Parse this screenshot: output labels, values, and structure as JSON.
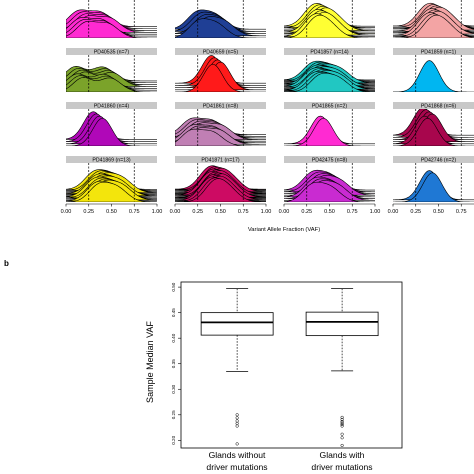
{
  "chart_data": [
    {
      "type": "area",
      "subtype": "ridgeline density grid",
      "xlabel": "Variant Allele Fraction (VAF)",
      "xlim": [
        0,
        1
      ],
      "x_ticks": [
        "0.00",
        "0.25",
        "0.50",
        "0.75",
        "1.00"
      ],
      "reference_lines": [
        0.25,
        0.75
      ],
      "panels": [
        {
          "label": "",
          "color": "#ff2ad2",
          "n_ridges": 7,
          "peaks": [
            0.18,
            0.42
          ]
        },
        {
          "label": "",
          "color": "#1f3f95",
          "n_ridges": 5,
          "peaks": [
            0.28,
            0.48
          ]
        },
        {
          "label": "",
          "color": "#ffff33",
          "n_ridges": 9,
          "peaks": [
            0.35,
            0.5
          ]
        },
        {
          "label": "",
          "color": "#f3a4a4",
          "n_ridges": 10,
          "peaks": [
            0.4,
            0.55
          ]
        },
        {
          "label": "PD40535 (n=7)",
          "color": "#7ba32a",
          "n_ridges": 7,
          "peaks": [
            0.15,
            0.45
          ]
        },
        {
          "label": "PD40659 (n=5)",
          "color": "#ff1a1a",
          "n_ridges": 5,
          "peaks": [
            0.45
          ]
        },
        {
          "label": "PD41857 (n=14)",
          "color": "#21c7c2",
          "n_ridges": 14,
          "peaks": [
            0.35,
            0.55
          ]
        },
        {
          "label": "PD41859 (n=1)",
          "color": "#00b6f1",
          "n_ridges": 1,
          "peaks": [
            0.45
          ]
        },
        {
          "label": "PD41860 (n=4)",
          "color": "#b008b8",
          "n_ridges": 4,
          "peaks": [
            0.35
          ]
        },
        {
          "label": "PD41861 (n=8)",
          "color": "#c07fb4",
          "n_ridges": 8,
          "peaks": [
            0.22,
            0.45
          ]
        },
        {
          "label": "PD41865 (n=2)",
          "color": "#ff2ad2",
          "n_ridges": 2,
          "peaks": [
            0.45
          ]
        },
        {
          "label": "PD41868 (n=6)",
          "color": "#a8064d",
          "n_ridges": 6,
          "peaks": [
            0.38
          ]
        },
        {
          "label": "PD41869 (n=13)",
          "color": "#f3e50c",
          "n_ridges": 13,
          "peaks": [
            0.35,
            0.55
          ]
        },
        {
          "label": "PD41871 (n=17)",
          "color": "#cd0b63",
          "n_ridges": 17,
          "peaks": [
            0.4,
            0.55
          ]
        },
        {
          "label": "PD42475 (n=8)",
          "color": "#c92bd1",
          "n_ridges": 8,
          "peaks": [
            0.35,
            0.55
          ]
        },
        {
          "label": "PD42746 (n=2)",
          "color": "#1f78d4",
          "n_ridges": 2,
          "peaks": [
            0.45
          ]
        }
      ]
    },
    {
      "type": "box",
      "panel_label": "b",
      "ylabel": "Sample Median VAF",
      "y_ticks": [
        "0.20",
        "0.25",
        "0.30",
        "0.35",
        "0.40",
        "0.45",
        "0.50"
      ],
      "ylim": [
        0.185,
        0.51
      ],
      "categories": [
        "Glands without driver mutations",
        "Glands with driver mutations"
      ],
      "boxes": [
        {
          "whisker_low": 0.335,
          "q1": 0.406,
          "median": 0.431,
          "q3": 0.45,
          "whisker_high": 0.497,
          "outliers": [
            0.228,
            0.233,
            0.238,
            0.244,
            0.25,
            0.193
          ]
        },
        {
          "whisker_low": 0.336,
          "q1": 0.405,
          "median": 0.432,
          "q3": 0.451,
          "whisker_high": 0.497,
          "outliers": [
            0.228,
            0.231,
            0.234,
            0.237,
            0.241,
            0.245,
            0.212,
            0.205,
            0.19
          ]
        }
      ]
    }
  ],
  "labels": {
    "first_category": [
      "Glands without",
      "driver mutations"
    ],
    "second_category": [
      "Glands with",
      "driver mutations"
    ]
  }
}
